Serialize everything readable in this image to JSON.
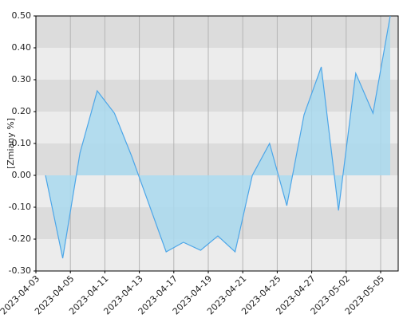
{
  "chart_data": {
    "type": "area",
    "ylabel": "[Zmiany %]",
    "categories": [
      "2023-04-03",
      null,
      "2023-04-05",
      null,
      "2023-04-11",
      null,
      "2023-04-13",
      null,
      "2023-04-17",
      null,
      "2023-04-19",
      null,
      "2023-04-21",
      null,
      "2023-04-25",
      null,
      "2023-04-27",
      null,
      "2023-05-02",
      null,
      "2023-05-05"
    ],
    "values": [
      0.0,
      -0.26,
      0.07,
      0.265,
      0.195,
      0.06,
      -0.09,
      -0.24,
      -0.21,
      -0.235,
      -0.19,
      -0.24,
      0.0,
      0.1,
      -0.095,
      0.19,
      0.34,
      -0.11,
      0.32,
      0.195,
      0.5
    ],
    "color": "#4da6e8",
    "fill": "#a9d9ef",
    "ylim": [
      -0.3,
      0.5
    ],
    "yticks": [
      {
        "value": -0.3,
        "label": "-0.30"
      },
      {
        "value": -0.2,
        "label": "-0.20"
      },
      {
        "value": -0.1,
        "label": "-0.10"
      },
      {
        "value": 0,
        "label": "0.00"
      },
      {
        "value": 0.1,
        "label": "0.10"
      },
      {
        "value": 0.2,
        "label": "0.20"
      },
      {
        "value": 0.3,
        "label": "0.30"
      },
      {
        "value": 0.4,
        "label": "0.40"
      },
      {
        "value": 0.5,
        "label": "0.50"
      }
    ],
    "grid": true
  }
}
